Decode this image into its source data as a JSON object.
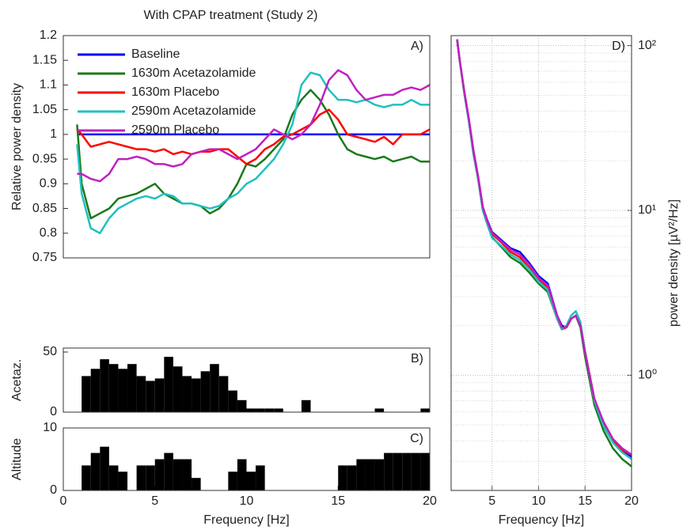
{
  "chart_data": [
    {
      "type": "line",
      "title": "With CPAP treatment (Study 2)",
      "ylabel": "Relative power density",
      "panel_label": "A)",
      "xlim": [
        0,
        20
      ],
      "ylim": [
        0.75,
        1.2
      ],
      "yticks": [
        0.75,
        0.8,
        0.85,
        0.9,
        0.95,
        1,
        1.05,
        1.1,
        1.15,
        1.2
      ],
      "legend": "upper left",
      "x": [
        0.75,
        1,
        1.5,
        2,
        2.5,
        3,
        3.5,
        4,
        4.5,
        5,
        5.5,
        6,
        6.5,
        7,
        7.5,
        8,
        8.5,
        9,
        9.5,
        10,
        10.5,
        11,
        11.5,
        12,
        12.5,
        13,
        13.5,
        14,
        14.5,
        15,
        15.5,
        16,
        16.5,
        17,
        17.5,
        18,
        18.5,
        19,
        19.5,
        20
      ],
      "series": [
        {
          "name": "Baseline",
          "color": "#0000ff",
          "values": [
            1,
            1,
            1,
            1,
            1,
            1,
            1,
            1,
            1,
            1,
            1,
            1,
            1,
            1,
            1,
            1,
            1,
            1,
            1,
            1,
            1,
            1,
            1,
            1,
            1,
            1,
            1,
            1,
            1,
            1,
            1,
            1,
            1,
            1,
            1,
            1,
            1,
            1,
            1,
            1
          ]
        },
        {
          "name": "1630m Acetazolamide",
          "color": "#1a7a1a",
          "values": [
            1.02,
            0.9,
            0.83,
            0.84,
            0.85,
            0.87,
            0.875,
            0.88,
            0.89,
            0.9,
            0.88,
            0.87,
            0.86,
            0.86,
            0.855,
            0.84,
            0.85,
            0.87,
            0.9,
            0.94,
            0.935,
            0.95,
            0.97,
            0.99,
            1.04,
            1.07,
            1.09,
            1.07,
            1.04,
            1.0,
            0.97,
            0.96,
            0.955,
            0.95,
            0.955,
            0.945,
            0.95,
            0.955,
            0.945,
            0.945
          ]
        },
        {
          "name": "1630m Placebo",
          "color": "#ff0000",
          "values": [
            1.01,
            1.0,
            0.975,
            0.98,
            0.985,
            0.98,
            0.975,
            0.97,
            0.97,
            0.965,
            0.97,
            0.96,
            0.965,
            0.96,
            0.965,
            0.965,
            0.97,
            0.97,
            0.955,
            0.94,
            0.95,
            0.97,
            0.98,
            0.995,
            1.0,
            1.01,
            1.02,
            1.04,
            1.05,
            1.03,
            1.0,
            0.995,
            0.99,
            0.985,
            0.995,
            0.98,
            1.0,
            1.0,
            1.0,
            1.01
          ]
        },
        {
          "name": "2590m Acetazolamide",
          "color": "#20c0c0",
          "values": [
            0.98,
            0.88,
            0.81,
            0.8,
            0.83,
            0.85,
            0.86,
            0.87,
            0.875,
            0.87,
            0.88,
            0.875,
            0.86,
            0.86,
            0.855,
            0.85,
            0.855,
            0.87,
            0.88,
            0.9,
            0.91,
            0.93,
            0.95,
            0.98,
            1.02,
            1.1,
            1.125,
            1.12,
            1.09,
            1.07,
            1.07,
            1.065,
            1.07,
            1.06,
            1.055,
            1.06,
            1.06,
            1.07,
            1.06,
            1.06
          ]
        },
        {
          "name": "2590m Placebo",
          "color": "#c020c0",
          "values": [
            0.92,
            0.92,
            0.91,
            0.905,
            0.92,
            0.95,
            0.95,
            0.955,
            0.95,
            0.94,
            0.94,
            0.935,
            0.94,
            0.96,
            0.965,
            0.97,
            0.97,
            0.96,
            0.95,
            0.96,
            0.97,
            0.99,
            1.01,
            1.0,
            0.99,
            1.0,
            1.02,
            1.06,
            1.11,
            1.13,
            1.12,
            1.09,
            1.07,
            1.075,
            1.08,
            1.08,
            1.09,
            1.095,
            1.09,
            1.1
          ]
        }
      ]
    },
    {
      "type": "histogram",
      "ylabel": "Acetaz.",
      "panel_label": "B)",
      "color": "#000000",
      "xlim": [
        0,
        20
      ],
      "ylim": [
        0,
        50
      ],
      "yticks": [
        0,
        50
      ],
      "bins": [
        1,
        1.5,
        2,
        2.5,
        3,
        3.5,
        4,
        4.5,
        5,
        5.5,
        6,
        6.5,
        7,
        7.5,
        8,
        8.5,
        9,
        9.5,
        10,
        10.5,
        11,
        11.5,
        12,
        12.5,
        13,
        13.5,
        14,
        14.5,
        15,
        15.5,
        16,
        16.5,
        17,
        17.5,
        18,
        18.5,
        19,
        19.5,
        20
      ],
      "values": [
        30,
        36,
        44,
        40,
        36,
        40,
        30,
        26,
        28,
        46,
        38,
        30,
        28,
        34,
        40,
        30,
        18,
        10,
        3,
        3,
        3,
        3,
        0,
        0,
        10,
        0,
        0,
        0,
        0,
        0,
        0,
        0,
        3,
        0,
        0,
        0,
        0,
        3
      ]
    },
    {
      "type": "histogram",
      "ylabel": "Altitude",
      "xlabel": "Frequency [Hz]",
      "panel_label": "C)",
      "color": "#000000",
      "xlim": [
        0,
        20
      ],
      "ylim": [
        0,
        10
      ],
      "yticks": [
        0,
        10
      ],
      "xticks": [
        0,
        5,
        10,
        15,
        20
      ],
      "bins": [
        1,
        1.5,
        2,
        2.5,
        3,
        3.5,
        4,
        4.5,
        5,
        5.5,
        6,
        6.5,
        7,
        7.5,
        8,
        8.5,
        9,
        9.5,
        10,
        10.5,
        11,
        11.5,
        12,
        12.5,
        13,
        13.5,
        14,
        14.5,
        15,
        15.5,
        16,
        16.5,
        17,
        17.5,
        18,
        18.5,
        19,
        19.5,
        20
      ],
      "values": [
        4,
        6,
        7,
        4,
        3,
        0,
        4,
        4,
        5,
        6,
        5,
        5,
        2,
        0,
        0,
        0,
        3,
        5,
        3,
        4,
        0,
        0,
        0,
        0,
        0,
        0,
        0,
        0,
        4,
        4,
        5,
        5,
        5,
        6,
        6,
        6,
        6,
        6
      ]
    },
    {
      "type": "line",
      "ylabel": "power density [µV²/Hz]",
      "xlabel": "Frequency [Hz]",
      "panel_label": "D)",
      "log_y": true,
      "grid": true,
      "minor_grid": true,
      "y_side": "right",
      "xlim": [
        0.6,
        20
      ],
      "ylim": [
        0.2,
        115
      ],
      "xticks": [
        5,
        10,
        15,
        20
      ],
      "yticks": [
        {
          "value": 1,
          "label": "10⁰"
        },
        {
          "value": 10,
          "label": "10¹"
        },
        {
          "value": 100,
          "label": "10²"
        }
      ],
      "x": [
        1.25,
        1.5,
        2,
        2.5,
        3,
        3.5,
        4,
        4.5,
        5,
        6,
        7,
        8,
        9,
        10,
        11,
        12,
        12.5,
        13,
        13.5,
        14,
        14.5,
        15,
        16,
        17,
        18,
        19,
        20
      ],
      "series": [
        {
          "color": "#0000ff",
          "values": [
            109,
            83,
            53,
            36,
            23,
            16,
            10.5,
            8.7,
            7.4,
            6.6,
            5.9,
            5.6,
            4.8,
            4.0,
            3.6,
            2.3,
            2.0,
            1.95,
            2.2,
            2.3,
            2.0,
            1.35,
            0.7,
            0.5,
            0.4,
            0.35,
            0.32
          ]
        },
        {
          "color": "#1a7a1a",
          "values": [
            109,
            83,
            52,
            35,
            22,
            15.5,
            10,
            8.3,
            6.9,
            6.0,
            5.2,
            4.8,
            4.2,
            3.6,
            3.2,
            2.2,
            1.9,
            1.95,
            2.2,
            2.3,
            1.95,
            1.3,
            0.66,
            0.46,
            0.36,
            0.31,
            0.28
          ]
        },
        {
          "color": "#ff0000",
          "values": [
            109,
            83,
            53,
            36,
            23,
            16,
            10.5,
            8.6,
            7.2,
            6.4,
            5.6,
            5.2,
            4.5,
            3.8,
            3.4,
            2.2,
            1.9,
            1.95,
            2.2,
            2.3,
            2.05,
            1.4,
            0.72,
            0.5,
            0.4,
            0.35,
            0.33
          ]
        },
        {
          "color": "#20c0c0",
          "values": [
            109,
            83,
            52,
            35,
            22,
            15.5,
            10,
            8.2,
            6.8,
            6.1,
            5.4,
            5.0,
            4.4,
            3.7,
            3.3,
            2.2,
            1.9,
            2.0,
            2.3,
            2.45,
            2.1,
            1.4,
            0.7,
            0.49,
            0.39,
            0.34,
            0.31
          ]
        },
        {
          "color": "#c020c0",
          "values": [
            109,
            83,
            53,
            36,
            23,
            16,
            10.5,
            8.6,
            7.3,
            6.5,
            5.8,
            5.4,
            4.7,
            3.9,
            3.5,
            2.3,
            1.95,
            1.95,
            2.2,
            2.3,
            2.0,
            1.38,
            0.72,
            0.52,
            0.41,
            0.36,
            0.33
          ]
        }
      ]
    }
  ]
}
